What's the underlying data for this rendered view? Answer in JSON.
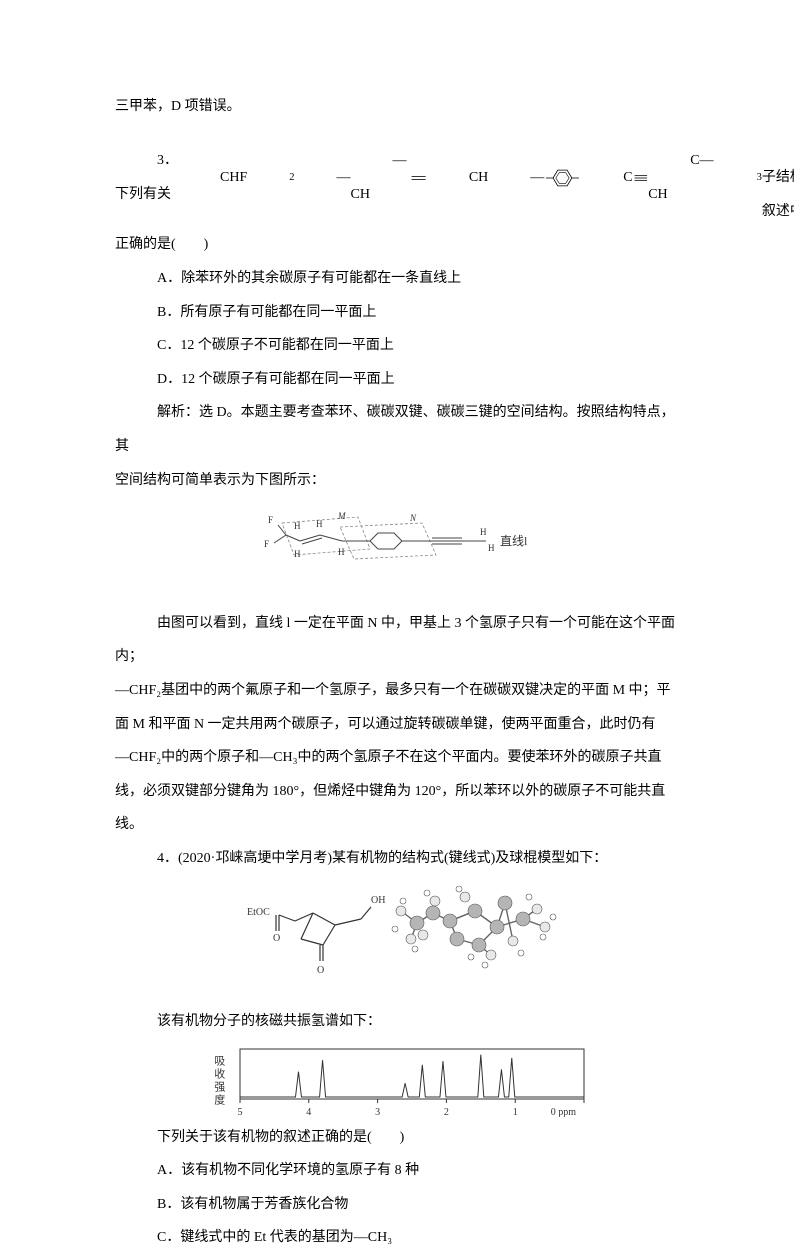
{
  "top_fragment": "三甲苯，D 项错误。",
  "q3": {
    "stem_prefix": "3．下列有关  ",
    "formula_parts": {
      "p1": "CHF",
      "p1sub": "2",
      "p2": "—CH",
      "p3": "CH",
      "p4": "C",
      "p5": "C—CH",
      "p5sub": "3"
    },
    "stem_suffix1": "  分子结构的叙述中，",
    "stem_line2": "正确的是(　　)",
    "optA": "A．除苯环外的其余碳原子有可能都在一条直线上",
    "optB": "B．所有原子有可能都在同一平面上",
    "optC": "C．12 个碳原子不可能都在同一平面上",
    "optD": "D．12 个碳原子有可能都在同一平面上",
    "expl1": "解析：选 D。本题主要考查苯环、碳碳双键、碳碳三键的空间结构。按照结构特点，其",
    "expl2": "空间结构可简单表示为下图所示：",
    "fig": {
      "stroke": "#555555",
      "stroke_dash": "#888888",
      "right_label": "直线l",
      "text_fill": "#333333"
    },
    "expl3": "由图可以看到，直线 l 一定在平面 N 中，甲基上 3 个氢原子只有一个可能在这个平面内；",
    "expl4": "—CHF₂基团中的两个氟原子和一个氢原子，最多只有一个在碳碳双键决定的平面 M 中；平",
    "expl5": "面 M 和平面 N 一定共用两个碳原子，可以通过旋转碳碳单键，使两平面重合，此时仍有",
    "expl6": "—CHF₂中的两个原子和—CH₃中的两个氢原子不在这个平面内。要使苯环外的碳原子共直",
    "expl7": "线，必须双键部分键角为 180°，但烯烃中键角为 120°，所以苯环以外的碳原子不可能共直",
    "expl8": "线。"
  },
  "q4": {
    "stem1": "4．(2020·邛崃高埂中学月考)某有机物的结构式(键线式)及球棍模型如下：",
    "struct_fig": {
      "label_etoc": "EtOC",
      "label_o1": "O",
      "label_o2": "O",
      "label_oh": "OH",
      "ball_large_fill": "#b5b5b5",
      "ball_small_fill": "#e8e8e8",
      "ball_tiny_fill": "#ffffff",
      "bond_stroke": "#666666",
      "line_stroke": "#333333"
    },
    "nmr_intro": "该有机物分子的核磁共振氢谱如下：",
    "nmr": {
      "ylabel": "吸收强度",
      "xmax_label": "5",
      "xticks": [
        "5",
        "4",
        "3",
        "2",
        "1",
        "0 ppm"
      ],
      "peaks": [
        {
          "x": 4.15,
          "h": 0.55
        },
        {
          "x": 3.8,
          "h": 0.8
        },
        {
          "x": 2.6,
          "h": 0.3
        },
        {
          "x": 2.35,
          "h": 0.7
        },
        {
          "x": 2.05,
          "h": 0.78
        },
        {
          "x": 1.5,
          "h": 0.92
        },
        {
          "x": 1.2,
          "h": 0.6
        },
        {
          "x": 1.05,
          "h": 0.85
        }
      ],
      "box_stroke": "#333333"
    },
    "stem2": "下列关于该有机物的叙述正确的是(　　)",
    "optA": "A．该有机物不同化学环境的氢原子有 8 种",
    "optB": "B．该有机物属于芳香族化合物",
    "optC": "C．键线式中的 Et 代表的基团为—CH₃"
  }
}
